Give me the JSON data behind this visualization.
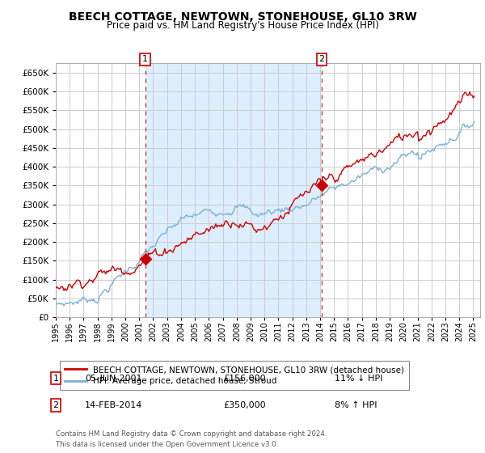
{
  "title": "BEECH COTTAGE, NEWTOWN, STONEHOUSE, GL10 3RW",
  "subtitle": "Price paid vs. HM Land Registry's House Price Index (HPI)",
  "title_fontsize": 10,
  "subtitle_fontsize": 8.5,
  "ylim": [
    0,
    675000
  ],
  "yticks": [
    0,
    50000,
    100000,
    150000,
    200000,
    250000,
    300000,
    350000,
    400000,
    450000,
    500000,
    550000,
    600000,
    650000
  ],
  "xlim_start": 1995.0,
  "xlim_end": 2025.5,
  "sale1_x": 2001.42,
  "sale1_y": 156000,
  "sale2_x": 2014.12,
  "sale2_y": 350000,
  "sale1_label": "05-JUN-2001",
  "sale1_price": "£156,000",
  "sale1_hpi": "11% ↓ HPI",
  "sale2_label": "14-FEB-2014",
  "sale2_price": "£350,000",
  "sale2_hpi": "8% ↑ HPI",
  "legend_line1": "BEECH COTTAGE, NEWTOWN, STONEHOUSE, GL10 3RW (detached house)",
  "legend_line2": "HPI: Average price, detached house, Stroud",
  "footer": "Contains HM Land Registry data © Crown copyright and database right 2024.\nThis data is licensed under the Open Government Licence v3.0.",
  "red_color": "#cc0000",
  "blue_color": "#7ab0d4",
  "shade_color": "#ddeeff",
  "vline_color": "#cc0000",
  "grid_color": "#cccccc",
  "bg_color": "#ffffff",
  "plot_bg_color": "#ffffff"
}
